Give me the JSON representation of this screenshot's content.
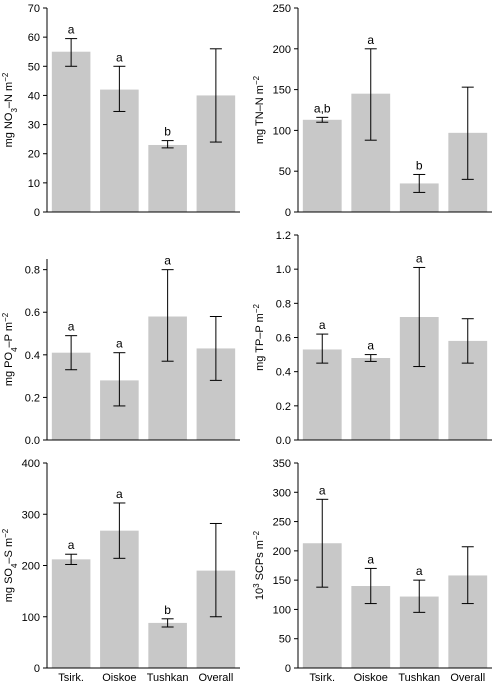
{
  "chart_data": [
    {
      "type": "bar",
      "categories": [
        "Tsirk.",
        "Oiskoe",
        "Tushkan",
        "Overall"
      ],
      "ylabel": "mg NO3–N m-2",
      "ylim": [
        0,
        70
      ],
      "yticks": [
        0,
        10,
        20,
        30,
        40,
        50,
        60,
        70
      ],
      "values": [
        55,
        42,
        23,
        40
      ],
      "error_low": [
        50,
        34.5,
        22,
        24
      ],
      "error_high": [
        59.5,
        50,
        24.5,
        56
      ],
      "annotations": [
        "a",
        "a",
        "b",
        ""
      ]
    },
    {
      "type": "bar",
      "categories": [
        "Tsirk.",
        "Oiskoe",
        "Tushkan",
        "Overall"
      ],
      "ylabel": "mg TN–N m-2",
      "ylim": [
        0,
        250
      ],
      "yticks": [
        0,
        50,
        100,
        150,
        200,
        250
      ],
      "values": [
        113,
        145,
        35,
        97
      ],
      "error_low": [
        110,
        88,
        24,
        40
      ],
      "error_high": [
        116,
        200,
        46,
        153
      ],
      "annotations": [
        "a,b",
        "a",
        "b",
        ""
      ]
    },
    {
      "type": "bar",
      "categories": [
        "Tsirk.",
        "Oiskoe",
        "Tushkan",
        "Overall"
      ],
      "ylabel": "mg PO4–P m-2",
      "ylim": [
        0,
        0.85
      ],
      "yticks": [
        "0.0",
        "0.2",
        "0.4",
        "0.6",
        "0.8"
      ],
      "values": [
        0.41,
        0.28,
        0.58,
        0.43
      ],
      "error_low": [
        0.33,
        0.16,
        0.37,
        0.28
      ],
      "error_high": [
        0.49,
        0.41,
        0.8,
        0.58
      ],
      "annotations": [
        "a",
        "a",
        "a",
        ""
      ]
    },
    {
      "type": "bar",
      "categories": [
        "Tsirk.",
        "Oiskoe",
        "Tushkan",
        "Overall"
      ],
      "ylabel": "mg TP–P m-2",
      "ylim": [
        0,
        1.2
      ],
      "yticks": [
        "0.0",
        "0.2",
        "0.4",
        "0.6",
        "0.8",
        "1.0",
        "1.2"
      ],
      "values": [
        0.53,
        0.48,
        0.72,
        0.58
      ],
      "error_low": [
        0.45,
        0.46,
        0.43,
        0.45
      ],
      "error_high": [
        0.62,
        0.5,
        1.01,
        0.71
      ],
      "annotations": [
        "a",
        "a",
        "a",
        ""
      ]
    },
    {
      "type": "bar",
      "categories": [
        "Tsirk.",
        "Oiskoe",
        "Tushkan",
        "Overall"
      ],
      "ylabel": "mg SO4–S m-2",
      "ylim": [
        0,
        400
      ],
      "yticks": [
        0,
        100,
        200,
        300,
        400
      ],
      "values": [
        212,
        268,
        88,
        190
      ],
      "error_low": [
        202,
        214,
        80,
        100
      ],
      "error_high": [
        222,
        322,
        96,
        282
      ],
      "annotations": [
        "a",
        "a",
        "b",
        ""
      ]
    },
    {
      "type": "bar",
      "categories": [
        "Tsirk.",
        "Oiskoe",
        "Tushkan",
        "Overall"
      ],
      "ylabel": "10^3 SCPs m-2",
      "ylim": [
        0,
        350
      ],
      "yticks": [
        0,
        50,
        100,
        150,
        200,
        250,
        300,
        350
      ],
      "values": [
        213,
        140,
        122,
        158
      ],
      "error_low": [
        138,
        110,
        95,
        110
      ],
      "error_high": [
        288,
        170,
        150,
        207
      ],
      "annotations": [
        "a",
        "a",
        "a",
        ""
      ]
    }
  ]
}
